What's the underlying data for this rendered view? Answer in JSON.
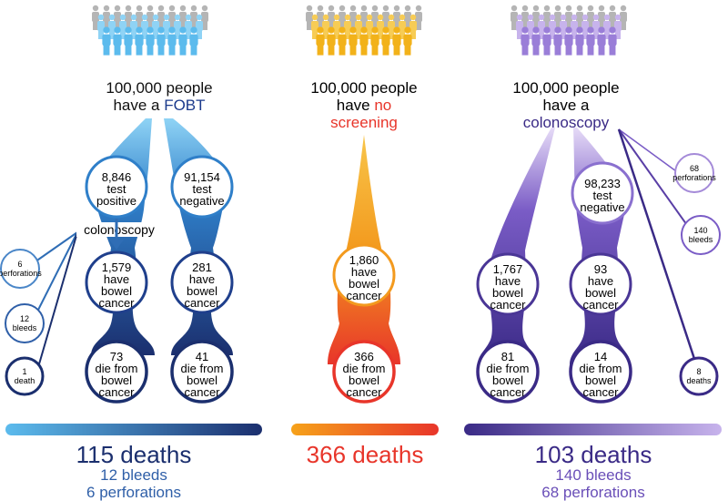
{
  "colors": {
    "fobt_dark": "#1b2f6e",
    "fobt_mid": "#2f6db5",
    "fobt_light": "#5cbbed",
    "none_dark": "#e8352a",
    "none_light": "#f6a21a",
    "colo_dark": "#3a2a86",
    "colo_mid": "#6a4fb8",
    "colo_light": "#c7b3ec",
    "gray_people": "#b5b5b5"
  },
  "fobt": {
    "header_line1": "100,000 people",
    "header_line2a": "have a ",
    "header_line2b": "FOBT",
    "positive": [
      "8,846",
      "test",
      "positive"
    ],
    "negative": [
      "91,154",
      "test",
      "negative"
    ],
    "colonoscopy_label": "colonoscopy",
    "pos_cancer": [
      "1,579",
      "have",
      "bowel",
      "cancer"
    ],
    "neg_cancer": [
      "281",
      "have",
      "bowel",
      "cancer"
    ],
    "pos_deaths": [
      "73",
      "die from",
      "bowel",
      "cancer"
    ],
    "neg_deaths": [
      "41",
      "die from",
      "bowel",
      "cancer"
    ],
    "side_perforations": [
      "6",
      "perforations"
    ],
    "side_bleeds": [
      "12",
      "bleeds"
    ],
    "side_death": [
      "1",
      "death"
    ],
    "total_deaths": "115 deaths",
    "total_bleeds": "12 bleeds",
    "total_perforations": "6 perforations"
  },
  "none": {
    "header_line1": "100,000 people",
    "header_line2a": "have ",
    "header_line2b": "no",
    "header_line3": "screening",
    "cancer": [
      "1,860",
      "have",
      "bowel",
      "cancer"
    ],
    "deaths": [
      "366",
      "die from",
      "bowel",
      "cancer"
    ],
    "total_deaths": "366 deaths"
  },
  "colo": {
    "header_line1": "100,000 people",
    "header_line2": "have a",
    "header_line3": "colonoscopy",
    "negative": [
      "98,233",
      "test",
      "negative"
    ],
    "pos_cancer": [
      "1,767",
      "have",
      "bowel",
      "cancer"
    ],
    "neg_cancer": [
      "93",
      "have",
      "bowel",
      "cancer"
    ],
    "pos_deaths": [
      "81",
      "die from",
      "bowel",
      "cancer"
    ],
    "neg_deaths": [
      "14",
      "die from",
      "bowel",
      "cancer"
    ],
    "side_perforations": [
      "68",
      "perforations"
    ],
    "side_bleeds": [
      "140",
      "bleeds"
    ],
    "side_deaths": [
      "8",
      "deaths"
    ],
    "total_deaths": "103 deaths",
    "total_bleeds": "140 bleeds",
    "total_perforations": "68 perforations"
  }
}
